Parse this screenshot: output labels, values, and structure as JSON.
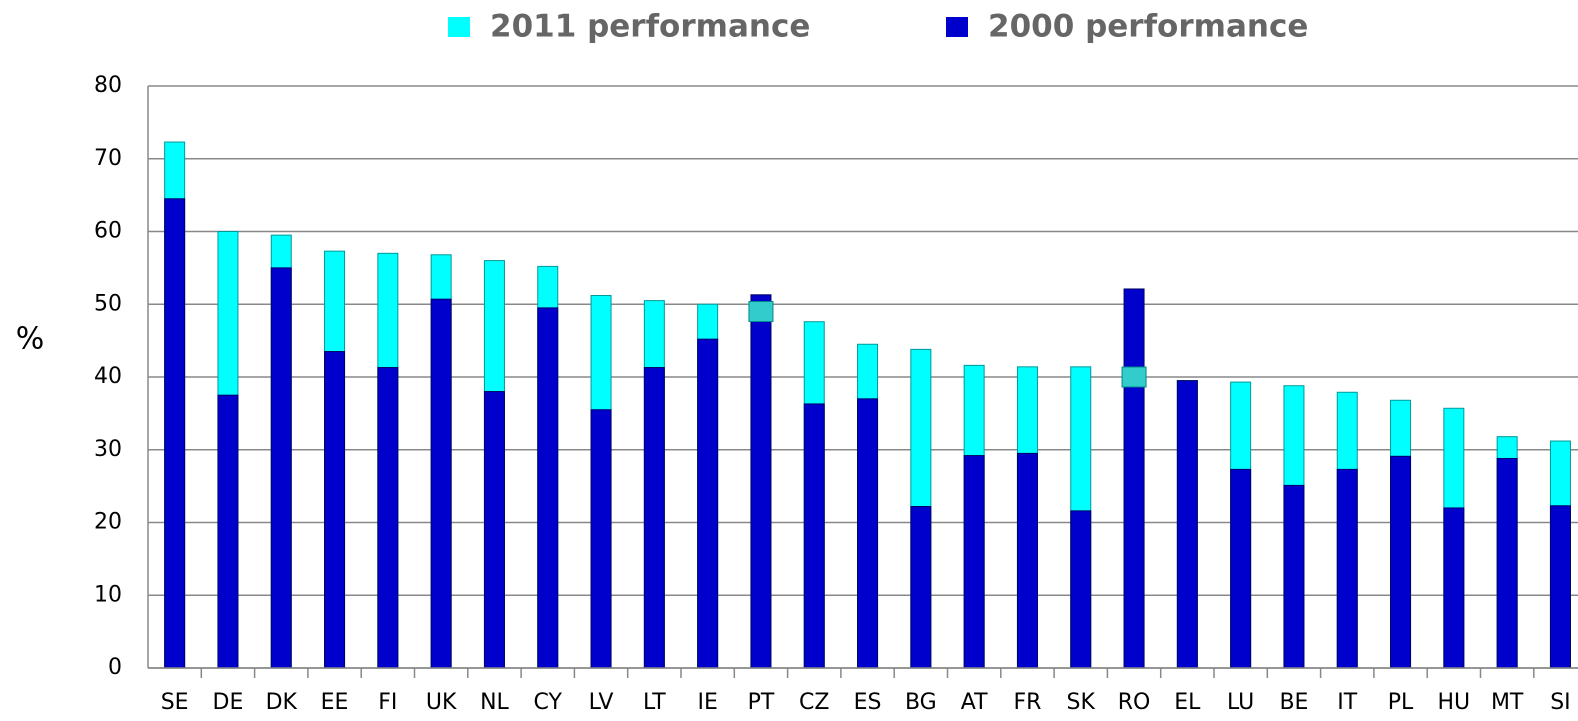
{
  "chart_data": {
    "type": "bar",
    "y_label": "%",
    "categories": [
      "SE",
      "DE",
      "DK",
      "EE",
      "FI",
      "UK",
      "NL",
      "CY",
      "LV",
      "LT",
      "IE",
      "PT",
      "CZ",
      "ES",
      "BG",
      "AT",
      "FR",
      "SK",
      "RO",
      "EL",
      "LU",
      "BE",
      "IT",
      "PL",
      "HU",
      "MT",
      "SI"
    ],
    "series": [
      {
        "name": "2011 performance",
        "color": "#00ffff",
        "values": [
          72.3,
          60,
          59.5,
          57.3,
          57,
          56.8,
          56,
          55.2,
          51.2,
          50.5,
          50,
          49,
          47.6,
          44.5,
          43.8,
          41.6,
          41.4,
          41.4,
          40,
          39.5,
          39.3,
          38.8,
          37.9,
          36.8,
          35.7,
          31.8,
          31.2
        ]
      },
      {
        "name": "2000 performance",
        "color": "#0000cc",
        "values": [
          64.5,
          37.5,
          55,
          43.5,
          41.3,
          50.7,
          38,
          49.5,
          35.5,
          41.3,
          45.2,
          51.3,
          36.3,
          37,
          22.2,
          29.2,
          29.5,
          21.6,
          52.1,
          39.5,
          27.3,
          25.1,
          27.3,
          29.1,
          22,
          28.8,
          22.3
        ]
      }
    ],
    "ylim": [
      0,
      80
    ],
    "yticks": [
      0,
      10,
      20,
      30,
      40,
      50,
      60,
      70,
      80
    ],
    "grid": true,
    "legend": "top"
  }
}
